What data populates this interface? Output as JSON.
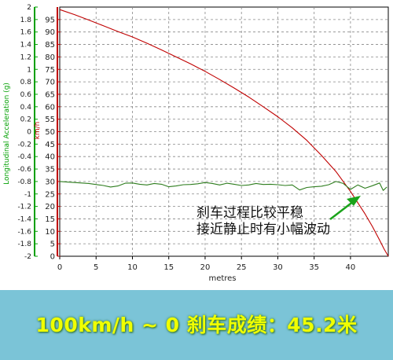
{
  "chart_data": {
    "type": "line",
    "xlabel": "metres",
    "x_ticks": [
      0,
      5,
      10,
      15,
      20,
      25,
      30,
      35,
      40
    ],
    "xlim": [
      0,
      45.2
    ],
    "left_axis": {
      "label": "Longitudinal Acceleration (g)",
      "color": "#00a000",
      "ylim": [
        -2,
        2
      ],
      "ticks": [
        "2",
        "1.8",
        "1.6",
        "1.4",
        "1.2",
        "1",
        "0.8",
        "0.6",
        "0.4",
        "0.2",
        "0",
        "-0.2",
        "-0.4",
        "-0.6",
        "-0.8",
        "-1",
        "-1.2",
        "-1.4",
        "-1.6",
        "-1.8",
        "-2"
      ]
    },
    "right_axis": {
      "label": "km/h",
      "color": "#c00000",
      "ylim": [
        0,
        100
      ],
      "ticks": [
        "95",
        "90",
        "85",
        "80",
        "75",
        "70",
        "65",
        "60",
        "55",
        "50",
        "45",
        "40",
        "35",
        "30",
        "25",
        "20",
        "15",
        "10",
        "5",
        "0"
      ]
    },
    "grid": true,
    "series": [
      {
        "axis": "right",
        "color": "#c00000",
        "x": [
          0,
          2,
          4,
          6,
          8,
          10,
          12,
          14,
          16,
          18,
          20,
          22,
          24,
          26,
          28,
          30,
          32,
          34,
          36,
          38,
          40,
          42,
          43,
          44,
          44.6,
          45.2
        ],
        "y": [
          99,
          97,
          94.8,
          92.5,
          90.2,
          88,
          85.5,
          82.8,
          80,
          77.2,
          74.2,
          70.9,
          67.5,
          63.9,
          60,
          56,
          51.5,
          46.5,
          40.5,
          34,
          26,
          17,
          12,
          6.5,
          3,
          0
        ]
      },
      {
        "axis": "right",
        "color": "#2e7d1e",
        "x": [
          0,
          2,
          4,
          6,
          7,
          8,
          9,
          10,
          11,
          12,
          13,
          14,
          15,
          16,
          17,
          18,
          19,
          20,
          21,
          22,
          23,
          24,
          25,
          26,
          27,
          28,
          29,
          30,
          31,
          32,
          33,
          34,
          35,
          36,
          37,
          38,
          39,
          40,
          41,
          42,
          43,
          44,
          44.5,
          45
        ],
        "y": [
          30,
          29.6,
          29.2,
          28.4,
          27.8,
          28.2,
          29.3,
          29.4,
          28.9,
          28.6,
          29.2,
          28.9,
          27.9,
          28.2,
          28.7,
          28.8,
          29.1,
          29.6,
          29.2,
          28.6,
          29.3,
          28.9,
          28.4,
          28.6,
          29.2,
          28.8,
          28.9,
          28.7,
          28.4,
          28.6,
          26.6,
          27.6,
          27.9,
          28.1,
          28.7,
          30.0,
          29.2,
          26.8,
          28.6,
          27.3,
          28.3,
          29.4,
          26.4,
          27.8
        ]
      }
    ],
    "annotation": {
      "lines": [
        "刹车过程比较平稳",
        "接近静止时有小幅波动"
      ],
      "arrow_color": "#1aa31a"
    }
  },
  "banner": {
    "text": "100km/h ~ 0 刹车成绩：45.2米",
    "bg_color": "#7bc4d7",
    "text_color": "#f0ff00"
  }
}
